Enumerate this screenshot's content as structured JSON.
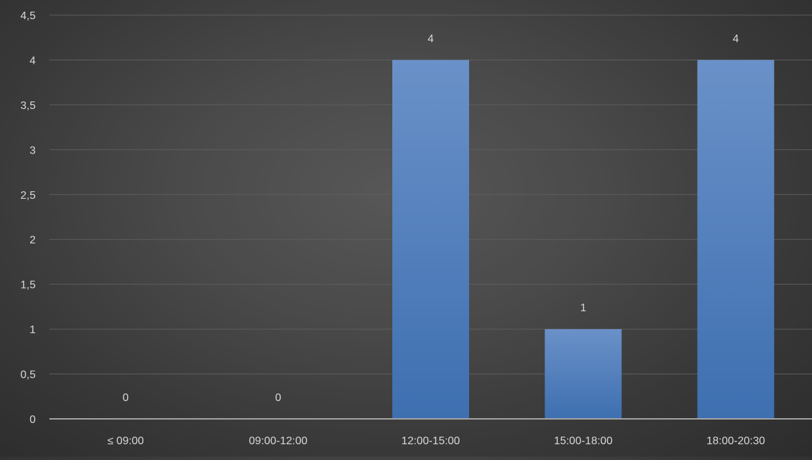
{
  "chart_data": {
    "type": "bar",
    "categories": [
      "≤ 09:00",
      "09:00-12:00",
      "12:00-15:00",
      "15:00-18:00",
      "18:00-20:30"
    ],
    "values": [
      0,
      0,
      4,
      1,
      4
    ],
    "yticks": [
      "0",
      "0,5",
      "1",
      "1,5",
      "2",
      "2,5",
      "3",
      "3,5",
      "4",
      "4,5"
    ],
    "data_labels": [
      "0",
      "0",
      "4",
      "1",
      "4"
    ],
    "ylim": [
      0,
      4.5
    ],
    "grid": true,
    "legend": "none",
    "colors": {
      "bar_top": "#6a91c8",
      "bar_bottom": "#3e6fb0",
      "gridline": "#5e5e5e",
      "axis_line": "#a6a6a6",
      "label_text": "#d9d9d9"
    }
  }
}
